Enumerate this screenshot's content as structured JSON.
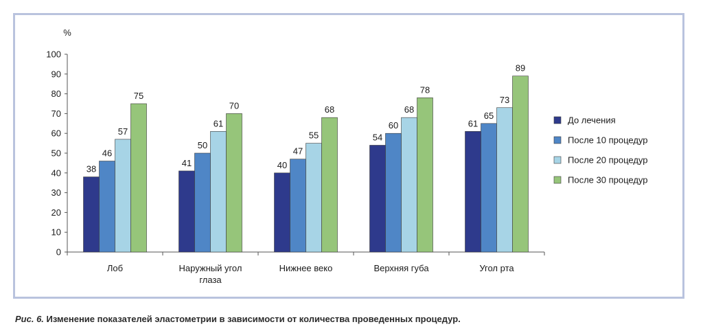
{
  "chart_data": {
    "type": "bar",
    "title": "",
    "ylabel": "%",
    "xlabel": "",
    "ylim": [
      0,
      100
    ],
    "yticks": [
      0,
      10,
      20,
      30,
      40,
      50,
      60,
      70,
      80,
      90,
      100
    ],
    "categories": [
      [
        "Лоб"
      ],
      [
        "Наружный угол",
        "глаза"
      ],
      [
        "Нижнее веко"
      ],
      [
        "Верхняя губа"
      ],
      [
        "Угол рта"
      ]
    ],
    "series": [
      {
        "name": "До лечения",
        "color": "#2e3a8c",
        "values": [
          38,
          41,
          40,
          54,
          61
        ]
      },
      {
        "name": "После 10 процедур",
        "color": "#4f86c6",
        "values": [
          46,
          50,
          47,
          60,
          65
        ]
      },
      {
        "name": "После 20 процедур",
        "color": "#a7d4e6",
        "values": [
          57,
          61,
          55,
          68,
          73
        ]
      },
      {
        "name": "После 30 процедур",
        "color": "#96c57a",
        "values": [
          75,
          70,
          68,
          78,
          89
        ]
      }
    ],
    "legend_position": "right",
    "grid": false,
    "data_labels": true
  },
  "caption": {
    "figure_label": "Рис. 6.",
    "text": " Изменение показателей эластометрии в зависимости от количества проведенных процедур."
  }
}
